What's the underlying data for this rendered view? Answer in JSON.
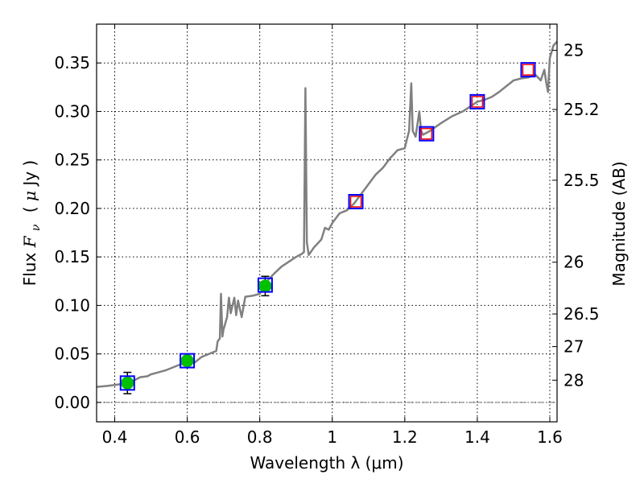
{
  "chart_data": {
    "type": "line",
    "xlabel": "Wavelength  λ (μm)",
    "ylabel": "Flux  F_ν  ( μJy )",
    "ylabel_parts": {
      "text": "Flux ",
      "symbol": "F",
      "subscript": "ν",
      "paren_open": "( ",
      "mu": "μ",
      "unit": "Jy )"
    },
    "y2label": "Magnitude (AB)",
    "xlim": [
      0.35,
      1.62
    ],
    "ylim": [
      -0.02,
      0.39
    ],
    "grid": true,
    "x_ticks": [
      {
        "value": 0.4,
        "label": "0.4"
      },
      {
        "value": 0.6,
        "label": "0.6"
      },
      {
        "value": 0.8,
        "label": "0.8"
      },
      {
        "value": 1.0,
        "label": "1"
      },
      {
        "value": 1.2,
        "label": "1.2"
      },
      {
        "value": 1.4,
        "label": "1.4"
      },
      {
        "value": 1.6,
        "label": "1.6"
      }
    ],
    "y_ticks": [
      {
        "value": 0.0,
        "label": "0.00"
      },
      {
        "value": 0.05,
        "label": "0.05"
      },
      {
        "value": 0.1,
        "label": "0.10"
      },
      {
        "value": 0.15,
        "label": "0.15"
      },
      {
        "value": 0.2,
        "label": "0.20"
      },
      {
        "value": 0.25,
        "label": "0.25"
      },
      {
        "value": 0.3,
        "label": "0.30"
      },
      {
        "value": 0.35,
        "label": "0.35"
      }
    ],
    "y2_ticks": [
      {
        "mag": 25,
        "label": "25"
      },
      {
        "mag": 25.2,
        "label": "25.2"
      },
      {
        "mag": 25.5,
        "label": "25.5"
      },
      {
        "mag": 26,
        "label": "26"
      },
      {
        "mag": 26.5,
        "label": "26.5"
      },
      {
        "mag": 27,
        "label": "27"
      },
      {
        "mag": 28,
        "label": "28"
      }
    ],
    "series": [
      {
        "role": "template-spectrum",
        "color": "#808080",
        "points": [
          [
            0.35,
            0.016
          ],
          [
            0.38,
            0.017
          ],
          [
            0.4,
            0.018
          ],
          [
            0.42,
            0.019
          ],
          [
            0.45,
            0.022
          ],
          [
            0.47,
            0.026
          ],
          [
            0.49,
            0.027
          ],
          [
            0.5,
            0.029
          ],
          [
            0.52,
            0.031
          ],
          [
            0.54,
            0.033
          ],
          [
            0.56,
            0.036
          ],
          [
            0.58,
            0.039
          ],
          [
            0.6,
            0.04
          ],
          [
            0.62,
            0.041
          ],
          [
            0.64,
            0.047
          ],
          [
            0.66,
            0.05
          ],
          [
            0.68,
            0.053
          ],
          [
            0.684,
            0.063
          ],
          [
            0.69,
            0.066
          ],
          [
            0.693,
            0.112
          ],
          [
            0.697,
            0.068
          ],
          [
            0.7,
            0.075
          ],
          [
            0.71,
            0.088
          ],
          [
            0.715,
            0.108
          ],
          [
            0.72,
            0.092
          ],
          [
            0.73,
            0.108
          ],
          [
            0.735,
            0.09
          ],
          [
            0.74,
            0.105
          ],
          [
            0.75,
            0.088
          ],
          [
            0.76,
            0.109
          ],
          [
            0.78,
            0.11
          ],
          [
            0.8,
            0.112
          ],
          [
            0.82,
            0.125
          ],
          [
            0.84,
            0.133
          ],
          [
            0.86,
            0.14
          ],
          [
            0.88,
            0.145
          ],
          [
            0.9,
            0.15
          ],
          [
            0.915,
            0.153
          ],
          [
            0.922,
            0.155
          ],
          [
            0.926,
            0.324
          ],
          [
            0.93,
            0.165
          ],
          [
            0.935,
            0.152
          ],
          [
            0.95,
            0.16
          ],
          [
            0.97,
            0.168
          ],
          [
            0.98,
            0.18
          ],
          [
            0.99,
            0.178
          ],
          [
            1.0,
            0.185
          ],
          [
            1.02,
            0.195
          ],
          [
            1.04,
            0.198
          ],
          [
            1.06,
            0.205
          ],
          [
            1.08,
            0.215
          ],
          [
            1.1,
            0.225
          ],
          [
            1.12,
            0.235
          ],
          [
            1.14,
            0.242
          ],
          [
            1.16,
            0.252
          ],
          [
            1.18,
            0.26
          ],
          [
            1.2,
            0.262
          ],
          [
            1.205,
            0.27
          ],
          [
            1.212,
            0.28
          ],
          [
            1.218,
            0.329
          ],
          [
            1.222,
            0.28
          ],
          [
            1.23,
            0.274
          ],
          [
            1.24,
            0.3
          ],
          [
            1.245,
            0.28
          ],
          [
            1.25,
            0.276
          ],
          [
            1.27,
            0.28
          ],
          [
            1.3,
            0.288
          ],
          [
            1.33,
            0.295
          ],
          [
            1.36,
            0.3
          ],
          [
            1.38,
            0.305
          ],
          [
            1.4,
            0.31
          ],
          [
            1.42,
            0.312
          ],
          [
            1.44,
            0.315
          ],
          [
            1.46,
            0.32
          ],
          [
            1.48,
            0.326
          ],
          [
            1.5,
            0.332
          ],
          [
            1.52,
            0.334
          ],
          [
            1.54,
            0.335
          ],
          [
            1.56,
            0.338
          ],
          [
            1.575,
            0.332
          ],
          [
            1.585,
            0.343
          ],
          [
            1.59,
            0.33
          ],
          [
            1.595,
            0.32
          ],
          [
            1.6,
            0.355
          ],
          [
            1.61,
            0.368
          ],
          [
            1.62,
            0.372
          ]
        ]
      },
      {
        "role": "model-photometry",
        "marker": "square",
        "edge_color": "#0000ff",
        "points": [
          [
            0.435,
            0.02
          ],
          [
            0.6,
            0.043
          ],
          [
            0.815,
            0.121
          ],
          [
            1.065,
            0.207
          ],
          [
            1.26,
            0.277
          ],
          [
            1.4,
            0.31
          ],
          [
            1.54,
            0.343
          ]
        ]
      },
      {
        "role": "detections",
        "marker": "circle",
        "color": "#00c000",
        "points": [
          {
            "x": 0.435,
            "y": 0.02,
            "yerr": 0.011
          },
          {
            "x": 0.6,
            "y": 0.043,
            "yerr": 0.005
          },
          {
            "x": 0.815,
            "y": 0.12,
            "yerr": 0.01
          }
        ]
      },
      {
        "role": "upper-limits",
        "marker": "square",
        "edge_color": "#ff0000",
        "points": [
          [
            1.065,
            0.207
          ],
          [
            1.26,
            0.277
          ],
          [
            1.4,
            0.31
          ],
          [
            1.54,
            0.343
          ]
        ]
      }
    ],
    "reference_line": {
      "y": 0.0,
      "color": "#7f7f7f"
    }
  }
}
